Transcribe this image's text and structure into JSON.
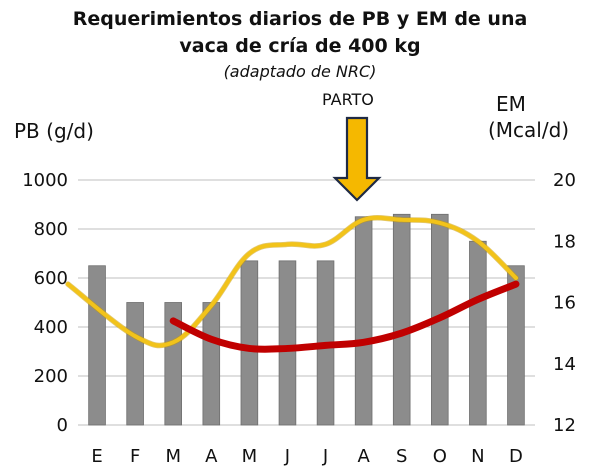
{
  "chart_data": {
    "type": "bar",
    "title": "Requerimientos diarios de PB y EM de una",
    "title_line2": "vaca de cría de 400 kg",
    "subtitle": "(adaptado de NRC)",
    "ylabel": "PB (g/d)",
    "y2label_line1": "EM",
    "y2label_line2": "(Mcal/d)",
    "annotation": "PARTO",
    "categories": [
      "E",
      "F",
      "M",
      "A",
      "M",
      "J",
      "J",
      "A",
      "S",
      "O",
      "N",
      "D"
    ],
    "series": [
      {
        "values": [
          650,
          500,
          500,
          500,
          670,
          670,
          670,
          850,
          860,
          860,
          750,
          650
        ],
        "color": "#8c8c8c",
        "axis": "left",
        "kind": "bar"
      }
    ],
    "overlays": [
      {
        "kind": "curve",
        "color": "#f2c31a",
        "axis": "right",
        "values": [
          16.6,
          14.9,
          14.7,
          15.9,
          17.6,
          17.9,
          17.9,
          18.7,
          18.7,
          18.6,
          18.0,
          16.8
        ]
      },
      {
        "kind": "curve",
        "color": "#c00000",
        "axis": "right",
        "values": [
          null,
          null,
          15.4,
          14.8,
          14.5,
          14.5,
          14.6,
          14.7,
          15.0,
          15.5,
          16.1,
          16.6
        ]
      }
    ],
    "ylim": [
      0,
      1000
    ],
    "yticks": [
      0,
      200,
      400,
      600,
      800,
      1000
    ],
    "y2lim": [
      12,
      20
    ],
    "y2ticks": [
      12,
      14,
      16,
      18,
      20
    ],
    "grid": true,
    "arrow_color": "#f5b800"
  }
}
